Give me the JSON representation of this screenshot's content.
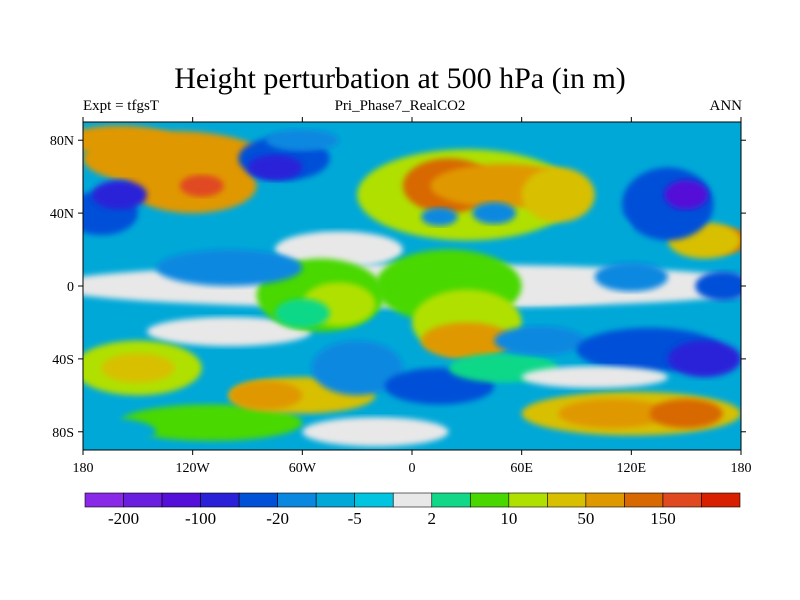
{
  "title": "Height perturbation at 500 hPa (in m)",
  "left_subtitle": "Expt = tfgsT",
  "center_subtitle": "Pri_Phase7_RealCO2",
  "right_subtitle": "ANN",
  "chart_data": {
    "type": "heatmap",
    "projection": "cylindrical equidistant",
    "title": "Height perturbation at 500 hPa (in m)",
    "units": "m",
    "xlim": [
      -180,
      180
    ],
    "ylim": [
      -90,
      90
    ],
    "x_ticks": [
      {
        "value": -180,
        "label": "180"
      },
      {
        "value": -120,
        "label": "120W"
      },
      {
        "value": -60,
        "label": "60W"
      },
      {
        "value": 0,
        "label": "0"
      },
      {
        "value": 60,
        "label": "60E"
      },
      {
        "value": 120,
        "label": "120E"
      },
      {
        "value": 180,
        "label": "180"
      }
    ],
    "y_ticks": [
      {
        "value": 80,
        "label": "80N"
      },
      {
        "value": 40,
        "label": "40N"
      },
      {
        "value": 0,
        "label": "0"
      },
      {
        "value": -40,
        "label": "40S"
      },
      {
        "value": -80,
        "label": "80S"
      }
    ],
    "colorbar": {
      "colors": [
        "#8a28e8",
        "#6a1ee0",
        "#5410d8",
        "#2a20d8",
        "#0050d8",
        "#0a88e0",
        "#00a8d8",
        "#00c4e0",
        "#e8e8e8",
        "#10d888",
        "#48d800",
        "#b0e000",
        "#d8c000",
        "#e09800",
        "#d86800",
        "#e04820",
        "#d82000"
      ],
      "labels": [
        {
          "boundary": 1,
          "label": "-200"
        },
        {
          "boundary": 3,
          "label": "-100"
        },
        {
          "boundary": 5,
          "label": "-20"
        },
        {
          "boundary": 7,
          "label": "-5"
        },
        {
          "boundary": 9,
          "label": "2"
        },
        {
          "boundary": 11,
          "label": "10"
        },
        {
          "boundary": 13,
          "label": "50"
        },
        {
          "boundary": 15,
          "label": "150"
        }
      ]
    }
  }
}
